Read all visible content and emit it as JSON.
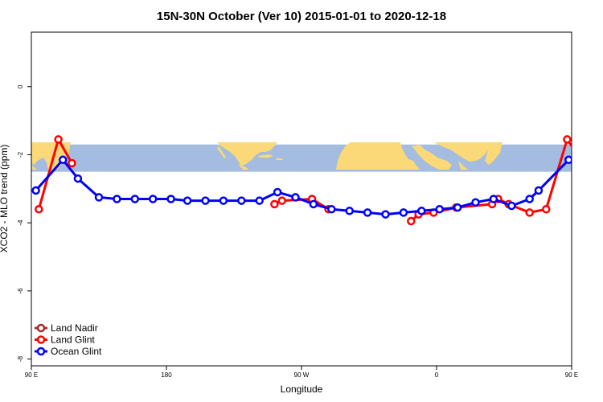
{
  "chart_data": {
    "type": "line",
    "title": "15N-30N October (Ver 10)   2015-01-01 to 2020-12-18",
    "xlabel": "Longitude",
    "ylabel": "XCO2 - MLO trend (ppm)",
    "xlim": [
      90,
      450
    ],
    "ylim": [
      -8.2,
      1.6
    ],
    "x_ticks": [
      {
        "value": 90,
        "label": "90 E"
      },
      {
        "value": 180,
        "label": "180"
      },
      {
        "value": 270,
        "label": "90 W"
      },
      {
        "value": 360,
        "label": "0"
      },
      {
        "value": 450,
        "label": "90 E"
      },
      {
        "value": 540,
        "label": "180"
      }
    ],
    "y_ticks": [
      {
        "value": 0,
        "label": "0"
      },
      {
        "value": -2,
        "label": "-2"
      },
      {
        "value": -4,
        "label": "-4"
      },
      {
        "value": -6,
        "label": "-6"
      },
      {
        "value": -8,
        "label": "-8"
      }
    ],
    "map_band": {
      "y_top": -1.7,
      "y_bottom": -2.5,
      "ocean_color": "#a3bcdf",
      "land_color": "#fbd978"
    },
    "legend": {
      "placement": "bottom-left"
    },
    "series": [
      {
        "name": "Land Nadir",
        "color": "#a52a2a",
        "x": [],
        "y": []
      },
      {
        "name": "Land Glint",
        "color": "#ff0000",
        "segments": [
          {
            "x": [
              95,
              108,
              117
            ],
            "y": [
              -3.6,
              -1.55,
              -2.25
            ]
          },
          {
            "x": [
              252,
              257,
              277,
              288
            ],
            "y": [
              -3.45,
              -3.35,
              -3.3,
              -3.6
            ]
          },
          {
            "x": [
              343,
              348,
              358,
              373,
              397,
              401,
              408,
              422,
              433,
              447,
              457,
              463
            ],
            "y": [
              -3.95,
              -3.75,
              -3.7,
              -3.55,
              -3.45,
              -3.3,
              -3.45,
              -3.7,
              -3.6,
              -1.55,
              -2.2,
              -2.25
            ]
          }
        ]
      },
      {
        "name": "Ocean Glint",
        "color": "#0000ff",
        "segments": [
          {
            "x": [
              93,
              111,
              121,
              135,
              147,
              159,
              171,
              183,
              194,
              206,
              218,
              230,
              242,
              254,
              266,
              278,
              290,
              302,
              314,
              326,
              338,
              350,
              362,
              374,
              386,
              398,
              410,
              422,
              428,
              448,
              461,
              474,
              486,
              498
            ],
            "y": [
              -3.05,
              -2.15,
              -2.7,
              -3.25,
              -3.3,
              -3.3,
              -3.3,
              -3.3,
              -3.35,
              -3.35,
              -3.35,
              -3.35,
              -3.35,
              -3.1,
              -3.25,
              -3.45,
              -3.6,
              -3.65,
              -3.7,
              -3.75,
              -3.7,
              -3.65,
              -3.6,
              -3.55,
              -3.4,
              -3.3,
              -3.5,
              -3.3,
              -3.05,
              -2.15,
              -2.7,
              -3.25,
              -3.3,
              -3.3
            ]
          }
        ]
      }
    ]
  }
}
